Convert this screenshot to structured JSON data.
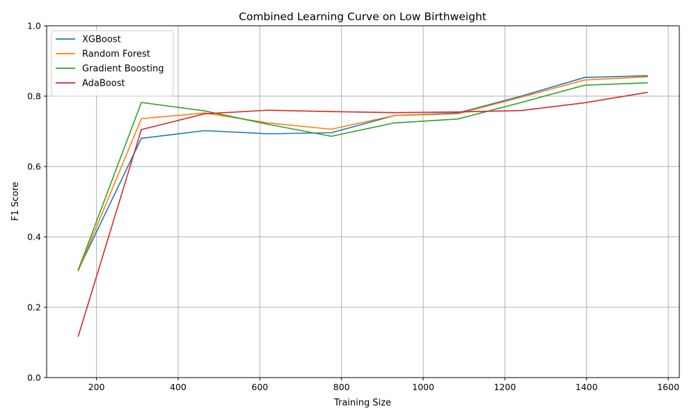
{
  "chart_data": {
    "type": "line",
    "title": "Combined Learning Curve on Low Birthweight",
    "xlabel": "Training Size",
    "ylabel": "F1 Score",
    "xlim": [
      78,
      1627
    ],
    "ylim": [
      0.0,
      1.0
    ],
    "xticks": [
      200,
      400,
      600,
      800,
      1000,
      1200,
      1400,
      1600
    ],
    "yticks": [
      0.0,
      0.2,
      0.4,
      0.6,
      0.8,
      1.0
    ],
    "grid": true,
    "legend_position": "top-left",
    "x": [
      155,
      310,
      465,
      620,
      775,
      930,
      1085,
      1240,
      1395,
      1550
    ],
    "series": [
      {
        "name": "XGBoost",
        "color": "#1f77b4",
        "values": [
          0.305,
          0.68,
          0.702,
          0.693,
          0.696,
          0.745,
          0.752,
          0.8,
          0.853,
          0.858
        ]
      },
      {
        "name": "Random Forest",
        "color": "#ff7f0e",
        "values": [
          0.302,
          0.736,
          0.752,
          0.724,
          0.706,
          0.745,
          0.75,
          0.797,
          0.846,
          0.855
        ]
      },
      {
        "name": "Gradient Boosting",
        "color": "#2ca02c",
        "values": [
          0.305,
          0.782,
          0.758,
          0.72,
          0.686,
          0.724,
          0.735,
          0.782,
          0.831,
          0.838
        ]
      },
      {
        "name": "AdaBoost",
        "color": "#d62728",
        "values": [
          0.116,
          0.705,
          0.75,
          0.76,
          0.756,
          0.753,
          0.755,
          0.759,
          0.781,
          0.811
        ]
      }
    ]
  }
}
